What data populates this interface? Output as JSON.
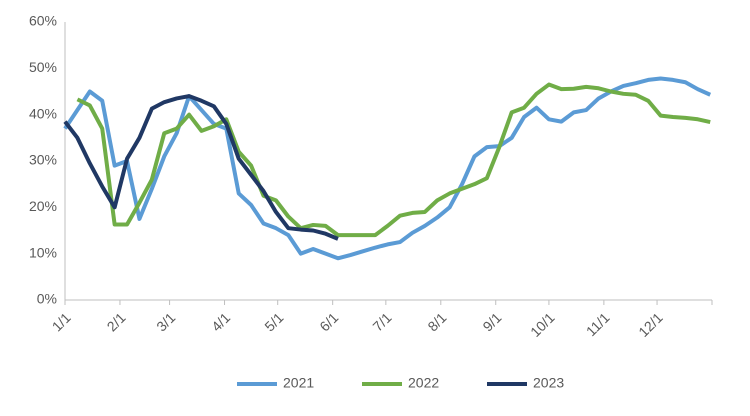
{
  "chart_data": {
    "type": "line",
    "x": [
      0,
      7,
      14,
      21,
      28,
      35,
      42,
      49,
      56,
      63,
      70,
      77,
      84,
      91,
      98,
      105,
      112,
      119,
      126,
      133,
      140,
      147,
      154,
      161,
      168,
      175,
      182,
      189,
      196,
      203,
      210,
      217,
      224,
      231,
      238,
      245,
      252,
      259,
      266,
      273,
      280,
      287,
      294,
      301,
      308,
      315,
      322,
      329,
      336,
      343,
      350,
      357,
      364
    ],
    "xlim": [
      0,
      365
    ],
    "xticks": [
      {
        "value": 0,
        "label": "1/1"
      },
      {
        "value": 31,
        "label": "2/1"
      },
      {
        "value": 59,
        "label": "3/1"
      },
      {
        "value": 90,
        "label": "4/1"
      },
      {
        "value": 120,
        "label": "5/1"
      },
      {
        "value": 151,
        "label": "6/1"
      },
      {
        "value": 181,
        "label": "7/1"
      },
      {
        "value": 212,
        "label": "8/1"
      },
      {
        "value": 243,
        "label": "9/1"
      },
      {
        "value": 273,
        "label": "10/1"
      },
      {
        "value": 304,
        "label": "11/1"
      },
      {
        "value": 334,
        "label": "12/1"
      }
    ],
    "ylim": [
      0,
      60
    ],
    "yticks": [
      {
        "value": 0,
        "label": "0%"
      },
      {
        "value": 10,
        "label": "10%"
      },
      {
        "value": 20,
        "label": "20%"
      },
      {
        "value": 30,
        "label": "30%"
      },
      {
        "value": 40,
        "label": "40%"
      },
      {
        "value": 50,
        "label": "50%"
      },
      {
        "value": 60,
        "label": "60%"
      }
    ],
    "grid": false,
    "legend": "bottom",
    "series": [
      {
        "name": "2021",
        "color": "#5b9bd5",
        "values": [
          37,
          41,
          45,
          43,
          29,
          30,
          17.5,
          24,
          31,
          36,
          44,
          41,
          38,
          37,
          23,
          20.5,
          16.5,
          15.5,
          14,
          10,
          11,
          10,
          9,
          9.7,
          10.5,
          11.3,
          12,
          12.5,
          14.5,
          16,
          17.8,
          20,
          25,
          31,
          33,
          33.2,
          35,
          39.5,
          41.5,
          39,
          38.5,
          40.5,
          41,
          43.5,
          45,
          46.2,
          46.8,
          47.5,
          47.8,
          47.5,
          47,
          45.5,
          44.3
        ]
      },
      {
        "name": "2022",
        "color": "#70ad47",
        "values": [
          null,
          43.3,
          42,
          37,
          16.3,
          16.3,
          21,
          26,
          36,
          37,
          40,
          36.5,
          37.5,
          39,
          32,
          29,
          22.5,
          21.5,
          18,
          15.5,
          16.2,
          16,
          14,
          14,
          14,
          14,
          16,
          18.2,
          18.8,
          19,
          21.5,
          23,
          24,
          25,
          26.3,
          33,
          40.5,
          41.5,
          44.5,
          46.5,
          45.5,
          45.6,
          46,
          45.7,
          45,
          44.5,
          44.3,
          43,
          39.8,
          39.5,
          39.3,
          39,
          38.4
        ]
      },
      {
        "name": "2023",
        "color": "#203864",
        "values": [
          38.5,
          35,
          29.5,
          24.5,
          20,
          30.5,
          35,
          41.3,
          42.7,
          43.5,
          44,
          43,
          41.8,
          38,
          30.5,
          27,
          23.5,
          19,
          15.5,
          15.2,
          15,
          14.3,
          13.2,
          null,
          null,
          null,
          null,
          null,
          null,
          null,
          null,
          null,
          null,
          null,
          null,
          null,
          null,
          null,
          null,
          null,
          null,
          null,
          null,
          null,
          null,
          null,
          null,
          null,
          null,
          null,
          null,
          null,
          null
        ]
      }
    ]
  }
}
